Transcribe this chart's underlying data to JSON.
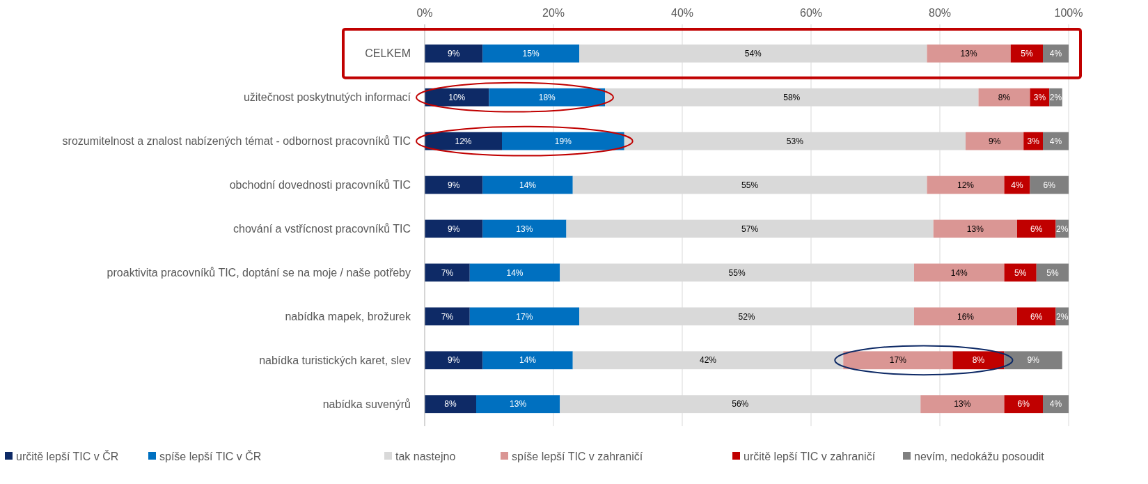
{
  "chart_data": {
    "type": "bar",
    "orientation": "horizontal",
    "stacked": true,
    "categories": [
      "CELKEM",
      "užitečnost poskytnutých informací",
      "srozumitelnost a znalost nabízených témat - odbornost pracovníků TIC",
      "obchodní dovednosti pracovníků TIC",
      "chování a vstřícnost pracovníků TIC",
      "proaktivita pracovníků TIC, doptání se na moje / naše potřeby",
      "nabídka mapek, brožurek",
      "nabídka turistických karet, slev",
      "nabídka suvenýrů"
    ],
    "series": [
      {
        "name": "určitě lepší TIC v ČR",
        "color": "#0e2a66",
        "values": [
          9,
          10,
          12,
          9,
          9,
          7,
          7,
          9,
          8
        ],
        "value_labels": [
          "9%",
          "10%",
          "12%",
          "9%",
          "9%",
          "7%",
          "7%",
          "9%",
          "8%"
        ]
      },
      {
        "name": "spíše lepší TIC v ČR",
        "color": "#0070c0",
        "values": [
          15,
          18,
          19,
          14,
          13,
          14,
          17,
          14,
          13
        ],
        "value_labels": [
          "15%",
          "18%",
          "19%",
          "14%",
          "13%",
          "14%",
          "17%",
          "14%",
          "13%"
        ]
      },
      {
        "name": "tak nastejno",
        "color": "#d9d9d9",
        "values": [
          54,
          58,
          53,
          55,
          57,
          55,
          52,
          42,
          56
        ],
        "value_labels": [
          "54%",
          "58%",
          "53%",
          "55%",
          "57%",
          "55%",
          "52%",
          "42%",
          "56%"
        ]
      },
      {
        "name": "spíše lepší TIC v zahraničí",
        "color": "#da9694",
        "values": [
          13,
          8,
          9,
          12,
          13,
          14,
          16,
          17,
          13
        ],
        "value_labels": [
          "13%",
          "8%",
          "9%",
          "12%",
          "13%",
          "14%",
          "16%",
          "17%",
          "13%"
        ]
      },
      {
        "name": "určitě lepší TIC v zahraničí",
        "color": "#c00000",
        "values": [
          5,
          3,
          3,
          4,
          6,
          5,
          6,
          8,
          6
        ],
        "value_labels": [
          "5%",
          "3%",
          "3%",
          "4%",
          "6%",
          "5%",
          "6%",
          "8%",
          "6%"
        ]
      },
      {
        "name": "nevím, nedokážu posoudit",
        "color": "#808080",
        "values": [
          4,
          2,
          4,
          6,
          2,
          5,
          2,
          9,
          4
        ],
        "value_labels": [
          "4%",
          "2%",
          "4%",
          "6%",
          "2%",
          "5%",
          "2%",
          "9%",
          "4%"
        ]
      }
    ],
    "xlim": [
      0,
      100
    ],
    "xticks": [
      {
        "value": 0,
        "label": "0%"
      },
      {
        "value": 20,
        "label": "20%"
      },
      {
        "value": 40,
        "label": "40%"
      },
      {
        "value": 60,
        "label": "60%"
      },
      {
        "value": 80,
        "label": "80%"
      },
      {
        "value": 100,
        "label": "100%"
      }
    ],
    "grid": "x",
    "legend": "bottom"
  }
}
